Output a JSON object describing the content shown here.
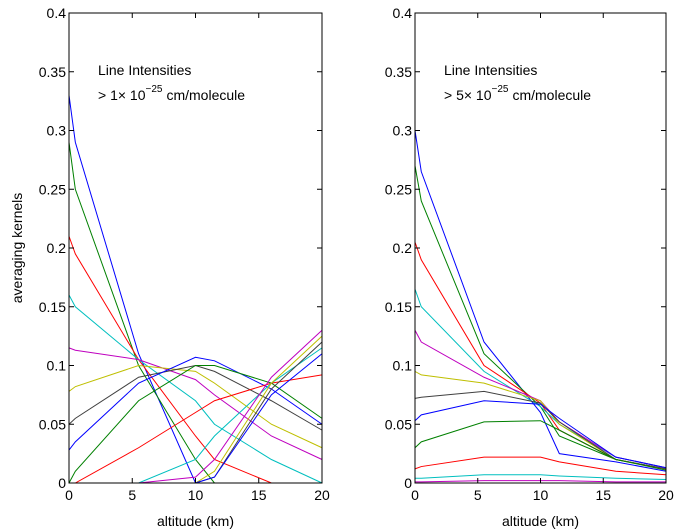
{
  "chart_data": [
    {
      "type": "line",
      "xlabel": "altitude (km)",
      "ylabel": "averaging kernels",
      "annotation": {
        "line1": "Line Intensities",
        "prefix": "> 1× 10",
        "exponent": "−25",
        "suffix": "cm/molecule"
      },
      "xlim": [
        0,
        20
      ],
      "ylim": [
        0,
        0.4
      ],
      "xticks": [
        0,
        5,
        10,
        15,
        20
      ],
      "yticks": [
        0,
        0.05,
        0.1,
        0.15,
        0.2,
        0.25,
        0.3,
        0.35,
        0.4
      ],
      "x": [
        0,
        0.5,
        5.5,
        10,
        11.5,
        16,
        20
      ],
      "series": [
        {
          "color": "#0000ff",
          "values": [
            0.33,
            0.29,
            0.11,
            0,
            0,
            0,
            0
          ]
        },
        {
          "color": "#008000",
          "values": [
            0.29,
            0.25,
            0.1,
            0.02,
            0,
            0,
            0
          ]
        },
        {
          "color": "#ff0000",
          "values": [
            0.21,
            0.195,
            0.105,
            0.04,
            0.02,
            0,
            0
          ]
        },
        {
          "color": "#00bfbf",
          "values": [
            0.16,
            0.15,
            0.105,
            0.07,
            0.05,
            0.02,
            0
          ]
        },
        {
          "color": "#bf00bf",
          "values": [
            0.115,
            0.113,
            0.105,
            0.088,
            0.075,
            0.04,
            0.02
          ]
        },
        {
          "color": "#bfbf00",
          "values": [
            0.078,
            0.082,
            0.1,
            0.095,
            0.085,
            0.05,
            0.03
          ]
        },
        {
          "color": "#404040",
          "values": [
            0.05,
            0.055,
            0.09,
            0.1,
            0.095,
            0.07,
            0.045
          ]
        },
        {
          "color": "#0000ff",
          "values": [
            0.028,
            0.035,
            0.085,
            0.107,
            0.104,
            0.08,
            0.05
          ]
        },
        {
          "color": "#008000",
          "values": [
            0,
            0.01,
            0.07,
            0.1,
            0.1,
            0.085,
            0.055
          ]
        },
        {
          "color": "#ff0000",
          "values": [
            0,
            0,
            0.03,
            0.06,
            0.07,
            0.085,
            0.092
          ]
        },
        {
          "color": "#00bfbf",
          "values": [
            0,
            0,
            0,
            0.02,
            0.04,
            0.085,
            0.115
          ]
        },
        {
          "color": "#bf00bf",
          "values": [
            0,
            0,
            0,
            0.005,
            0.02,
            0.09,
            0.13
          ]
        },
        {
          "color": "#bfbf00",
          "values": [
            0,
            0,
            0,
            0,
            0.01,
            0.085,
            0.125
          ]
        },
        {
          "color": "#404040",
          "values": [
            0,
            0,
            0,
            0,
            0.005,
            0.08,
            0.12
          ]
        },
        {
          "color": "#0000ff",
          "values": [
            0,
            0,
            0,
            0,
            0.005,
            0.075,
            0.11
          ]
        }
      ]
    },
    {
      "type": "line",
      "xlabel": "altitude (km)",
      "annotation": {
        "line1": "Line Intensities",
        "prefix": "> 5× 10",
        "exponent": "−25",
        "suffix": "cm/molecule"
      },
      "xlim": [
        0,
        20
      ],
      "ylim": [
        0,
        0.4
      ],
      "xticks": [
        0,
        5,
        10,
        15,
        20
      ],
      "yticks": [
        0,
        0.05,
        0.1,
        0.15,
        0.2,
        0.25,
        0.3,
        0.35,
        0.4
      ],
      "x": [
        0,
        0.5,
        5.5,
        10,
        11.5,
        16,
        20
      ],
      "series": [
        {
          "color": "#0000ff",
          "values": [
            0.3,
            0.265,
            0.12,
            0.06,
            0.025,
            0.018,
            0.01
          ]
        },
        {
          "color": "#008000",
          "values": [
            0.27,
            0.24,
            0.11,
            0.065,
            0.04,
            0.02,
            0.012
          ]
        },
        {
          "color": "#ff0000",
          "values": [
            0.205,
            0.19,
            0.1,
            0.068,
            0.045,
            0.02,
            0.012
          ]
        },
        {
          "color": "#00bfbf",
          "values": [
            0.165,
            0.15,
            0.095,
            0.065,
            0.05,
            0.022,
            0.013
          ]
        },
        {
          "color": "#bf00bf",
          "values": [
            0.13,
            0.12,
            0.09,
            0.07,
            0.052,
            0.022,
            0.013
          ]
        },
        {
          "color": "#bfbf00",
          "values": [
            0.095,
            0.092,
            0.085,
            0.07,
            0.05,
            0.02,
            0.012
          ]
        },
        {
          "color": "#404040",
          "values": [
            0.072,
            0.073,
            0.078,
            0.068,
            0.052,
            0.02,
            0.012
          ]
        },
        {
          "color": "#0000ff",
          "values": [
            0.053,
            0.058,
            0.07,
            0.067,
            0.055,
            0.022,
            0.013
          ]
        },
        {
          "color": "#008000",
          "values": [
            0.03,
            0.035,
            0.052,
            0.053,
            0.045,
            0.02,
            0.011
          ]
        },
        {
          "color": "#ff0000",
          "values": [
            0.012,
            0.014,
            0.022,
            0.022,
            0.018,
            0.01,
            0.007
          ]
        },
        {
          "color": "#00bfbf",
          "values": [
            0.004,
            0.004,
            0.007,
            0.007,
            0.006,
            0.004,
            0.003
          ]
        },
        {
          "color": "#bf00bf",
          "values": [
            0.001,
            0.001,
            0.002,
            0.002,
            0.002,
            0.001,
            0.001
          ]
        }
      ]
    }
  ]
}
